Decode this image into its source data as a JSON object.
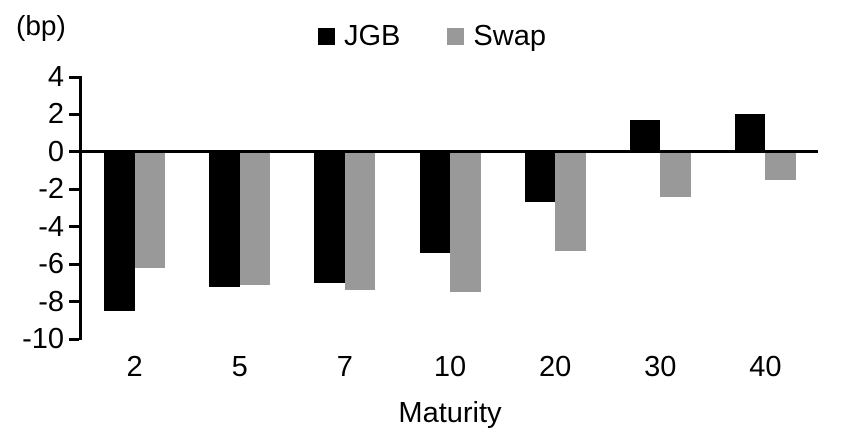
{
  "chart_data": {
    "type": "bar",
    "title": "",
    "unit_label": "(bp)",
    "xlabel": "Maturity",
    "categories": [
      "2",
      "5",
      "7",
      "10",
      "20",
      "30",
      "40"
    ],
    "series": [
      {
        "name": "JGB",
        "color": "#000000",
        "values": [
          -8.5,
          -7.2,
          -7.0,
          -5.4,
          -2.7,
          1.7,
          2.0
        ]
      },
      {
        "name": "Swap",
        "color": "#999999",
        "values": [
          -6.2,
          -7.1,
          -7.4,
          -7.5,
          -5.3,
          -2.4,
          -1.5
        ]
      }
    ],
    "ylim": [
      -10,
      4
    ],
    "yticks": [
      4,
      2,
      0,
      -2,
      -4,
      -6,
      -8,
      -10
    ],
    "grid": false,
    "legend_position": "top-center",
    "axis_color": "#000000",
    "background": "#ffffff"
  }
}
